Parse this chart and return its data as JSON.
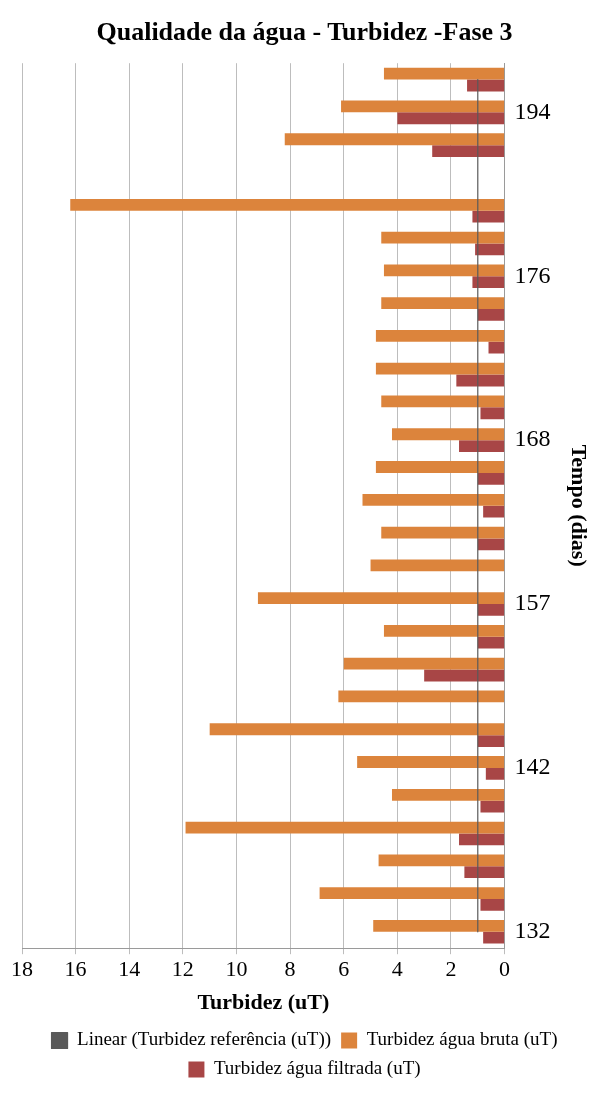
{
  "chart_data": {
    "type": "bar",
    "orientation": "horizontal",
    "title": "Qualidade da água - Turbidez -Fase 3",
    "xlabel": "Turbidez (uT)",
    "ylabel": "Tempo (dias)",
    "categories": [
      null,
      "194",
      null,
      null,
      null,
      null,
      "176",
      null,
      null,
      null,
      null,
      "168",
      null,
      null,
      null,
      null,
      "157",
      null,
      null,
      null,
      null,
      "142",
      null,
      null,
      null,
      null,
      "132"
    ],
    "series": [
      {
        "name": "Turbidez água bruta (uT)",
        "color": "#dc843c",
        "values": [
          4.5,
          6.1,
          8.2,
          null,
          16.2,
          4.6,
          4.5,
          4.6,
          4.8,
          4.8,
          4.6,
          4.2,
          4.8,
          5.3,
          4.6,
          5.0,
          9.2,
          4.5,
          6.0,
          6.2,
          11.0,
          5.5,
          4.2,
          11.9,
          4.7,
          6.9,
          4.9
        ]
      },
      {
        "name": "Turbidez água filtrada (uT)",
        "color": "#a84646",
        "values": [
          1.4,
          4.0,
          2.7,
          null,
          1.2,
          1.1,
          1.2,
          1.0,
          0.6,
          1.8,
          0.9,
          1.7,
          1.0,
          0.8,
          1.0,
          0,
          1.0,
          1.0,
          3.0,
          0,
          1.0,
          0.7,
          0.9,
          1.7,
          1.5,
          0.9,
          0.8
        ]
      },
      {
        "name": "Linear (Turbidez referência (uT))",
        "type": "line",
        "color": "#595959",
        "marker": "none",
        "line_style": "solid",
        "values": [
          1,
          1,
          1,
          1,
          1,
          1,
          1,
          1,
          1,
          1,
          1,
          1,
          1,
          1,
          1,
          1,
          1,
          1,
          1,
          1,
          1,
          1,
          1,
          1,
          1,
          1,
          1
        ]
      }
    ],
    "xlim": [
      18,
      0
    ],
    "xticks": [
      18,
      16,
      14,
      12,
      10,
      8,
      6,
      4,
      2,
      0
    ],
    "grid": "x",
    "legend": "bottom"
  }
}
